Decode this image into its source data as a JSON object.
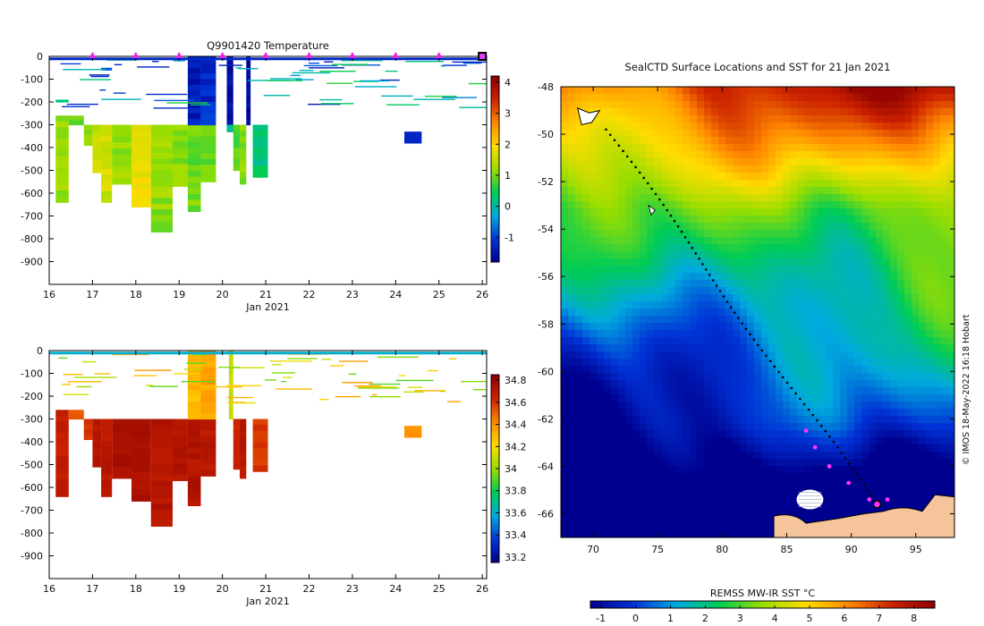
{
  "chart_data": [
    {
      "type": "heatmap",
      "title": "Q9901420  Temperature",
      "xlabel": "Jan 2021",
      "x_ticks": [
        "16",
        "17",
        "18",
        "19",
        "20",
        "21",
        "22",
        "23",
        "24",
        "25",
        "26"
      ],
      "xlim": [
        16,
        26.1
      ],
      "ylabel": "",
      "y_ticks": [
        "0",
        "-100",
        "-200",
        "-300",
        "-400",
        "-500",
        "-600",
        "-700",
        "-800",
        "-900"
      ],
      "ylim": [
        -1000,
        0
      ],
      "colorbar": {
        "ticks": [
          "-1",
          "0",
          "1",
          "2",
          "3",
          "4"
        ],
        "range": [
          -1.8,
          4.2
        ],
        "colors": [
          "#00008f",
          "#0033d6",
          "#00aadd",
          "#00cc55",
          "#99dd00",
          "#ffdd00",
          "#ff8800",
          "#cc2200",
          "#8b0000"
        ]
      },
      "profile_markers": [
        17,
        18,
        19,
        20,
        21,
        22,
        23,
        24,
        25,
        26
      ],
      "profiles": [
        {
          "t0": 16.15,
          "t1": 16.45,
          "segments": [
            [
              -260,
              -640,
              1.2
            ],
            [
              -190,
              -200,
              0.2
            ]
          ]
        },
        {
          "t0": 16.45,
          "t1": 16.8,
          "segments": [
            [
              -260,
              -300,
              1.0
            ]
          ]
        },
        {
          "t0": 16.8,
          "t1": 17.0,
          "segments": [
            [
              -300,
              -390,
              1.1
            ]
          ]
        },
        {
          "t0": 17.0,
          "t1": 17.2,
          "segments": [
            [
              -300,
              -510,
              1.5
            ]
          ]
        },
        {
          "t0": 17.2,
          "t1": 17.45,
          "segments": [
            [
              -300,
              -640,
              1.6
            ],
            [
              -50,
              -60,
              -0.8
            ]
          ]
        },
        {
          "t0": 17.45,
          "t1": 17.9,
          "segments": [
            [
              -300,
              -560,
              1.2
            ]
          ]
        },
        {
          "t0": 17.9,
          "t1": 18.35,
          "segments": [
            [
              -300,
              -660,
              1.8
            ]
          ]
        },
        {
          "t0": 18.35,
          "t1": 18.85,
          "segments": [
            [
              -300,
              -770,
              1.2
            ]
          ]
        },
        {
          "t0": 18.85,
          "t1": 19.2,
          "segments": [
            [
              -300,
              -570,
              1.1
            ]
          ]
        },
        {
          "t0": 19.2,
          "t1": 19.5,
          "segments": [
            [
              -300,
              -680,
              1.0
            ],
            [
              0,
              -300,
              -1.4
            ]
          ]
        },
        {
          "t0": 19.5,
          "t1": 19.85,
          "segments": [
            [
              -300,
              -550,
              1.0
            ],
            [
              0,
              -300,
              -1.2
            ]
          ]
        },
        {
          "t0": 20.1,
          "t1": 20.25,
          "segments": [
            [
              0,
              -330,
              -1.6
            ],
            [
              -300,
              -330,
              0.2
            ]
          ]
        },
        {
          "t0": 20.25,
          "t1": 20.4,
          "segments": [
            [
              -300,
              -500,
              0.8
            ]
          ]
        },
        {
          "t0": 20.4,
          "t1": 20.55,
          "segments": [
            [
              -300,
              -560,
              1.1
            ]
          ]
        },
        {
          "t0": 20.55,
          "t1": 20.65,
          "segments": [
            [
              0,
              -300,
              -1.6
            ]
          ]
        },
        {
          "t0": 20.7,
          "t1": 21.05,
          "segments": [
            [
              -300,
              -530,
              0.3
            ]
          ]
        },
        {
          "t0": 24.2,
          "t1": 24.6,
          "segments": [
            [
              -330,
              -380,
              -1.4
            ]
          ]
        }
      ]
    },
    {
      "type": "heatmap",
      "title": "",
      "xlabel": "Jan 2021",
      "x_ticks": [
        "16",
        "17",
        "18",
        "19",
        "20",
        "21",
        "22",
        "23",
        "24",
        "25",
        "26"
      ],
      "xlim": [
        16,
        26.1
      ],
      "ylabel": "",
      "y_ticks": [
        "0",
        "-100",
        "-200",
        "-300",
        "-400",
        "-500",
        "-600",
        "-700",
        "-800",
        "-900"
      ],
      "ylim": [
        -1000,
        0
      ],
      "colorbar": {
        "ticks": [
          "34.8",
          "34.6",
          "34.4",
          "34.2",
          "34",
          "33.8",
          "33.6",
          "33.4",
          "33.2"
        ],
        "range": [
          33.15,
          34.85
        ],
        "colors": [
          "#00008f",
          "#0033d6",
          "#00aadd",
          "#00cc55",
          "#99dd00",
          "#ffdd00",
          "#ff8800",
          "#cc2200",
          "#8b0000"
        ]
      },
      "profiles": [
        {
          "t0": 16.15,
          "t1": 16.45,
          "segments": [
            [
              -260,
              -640,
              34.66
            ]
          ]
        },
        {
          "t0": 16.45,
          "t1": 16.8,
          "segments": [
            [
              -260,
              -300,
              34.5
            ]
          ]
        },
        {
          "t0": 16.8,
          "t1": 17.0,
          "segments": [
            [
              -300,
              -390,
              34.6
            ]
          ]
        },
        {
          "t0": 17.0,
          "t1": 17.2,
          "segments": [
            [
              -300,
              -510,
              34.7
            ]
          ]
        },
        {
          "t0": 17.2,
          "t1": 17.45,
          "segments": [
            [
              -300,
              -640,
              34.7
            ]
          ]
        },
        {
          "t0": 17.45,
          "t1": 17.9,
          "segments": [
            [
              -300,
              -560,
              34.75
            ]
          ]
        },
        {
          "t0": 17.9,
          "t1": 18.35,
          "segments": [
            [
              -300,
              -660,
              34.75
            ]
          ]
        },
        {
          "t0": 18.35,
          "t1": 18.85,
          "segments": [
            [
              -300,
              -770,
              34.72
            ]
          ]
        },
        {
          "t0": 18.85,
          "t1": 19.2,
          "segments": [
            [
              -300,
              -570,
              34.72
            ]
          ]
        },
        {
          "t0": 19.2,
          "t1": 19.5,
          "segments": [
            [
              -300,
              -680,
              34.72
            ],
            [
              0,
              -300,
              34.3
            ]
          ]
        },
        {
          "t0": 19.5,
          "t1": 19.85,
          "segments": [
            [
              -300,
              -550,
              34.7
            ],
            [
              0,
              -300,
              34.35
            ]
          ]
        },
        {
          "t0": 20.15,
          "t1": 20.25,
          "segments": [
            [
              0,
              -300,
              34.1
            ]
          ]
        },
        {
          "t0": 20.25,
          "t1": 20.4,
          "segments": [
            [
              -300,
              -520,
              34.65
            ]
          ]
        },
        {
          "t0": 20.4,
          "t1": 20.55,
          "segments": [
            [
              -300,
              -560,
              34.7
            ]
          ]
        },
        {
          "t0": 20.7,
          "t1": 21.05,
          "segments": [
            [
              -300,
              -530,
              34.6
            ]
          ]
        },
        {
          "t0": 24.2,
          "t1": 24.6,
          "segments": [
            [
              -330,
              -380,
              34.4
            ]
          ]
        }
      ]
    },
    {
      "type": "heatmap",
      "title": "SealCTD Surface Locations and SST for 21 Jan 2021",
      "xlabel": "",
      "ylabel": "",
      "x_ticks": [
        "70",
        "75",
        "80",
        "85",
        "90",
        "95"
      ],
      "y_ticks": [
        "-48",
        "-50",
        "-52",
        "-54",
        "-56",
        "-58",
        "-60",
        "-62",
        "-64",
        "-66"
      ],
      "xlim": [
        67.5,
        98.0
      ],
      "ylim": [
        -67.0,
        -48.0
      ],
      "colorbar": {
        "label": "REMSS MW-IR SST °C",
        "ticks": [
          "-1",
          "0",
          "1",
          "2",
          "3",
          "4",
          "5",
          "6",
          "7",
          "8"
        ],
        "range": [
          -1.3,
          8.6
        ],
        "colors": [
          "#00008f",
          "#0033d6",
          "#00aadd",
          "#00cc55",
          "#99dd00",
          "#ffdd00",
          "#ff8800",
          "#cc2200",
          "#8b0000"
        ]
      },
      "track_start": [
        71.0,
        -49.8
      ],
      "track_end": [
        92.0,
        -65.7
      ],
      "recent_positions": [
        [
          86.5,
          -62.5
        ],
        [
          87.2,
          -63.2
        ],
        [
          88.3,
          -64.0
        ],
        [
          89.8,
          -64.7
        ],
        [
          91.4,
          -65.4
        ],
        [
          92.8,
          -65.4
        ]
      ],
      "last_position": [
        92.0,
        -65.6
      ],
      "credit": "© IMOS 18-May-2022 16:18 Hobart"
    }
  ]
}
